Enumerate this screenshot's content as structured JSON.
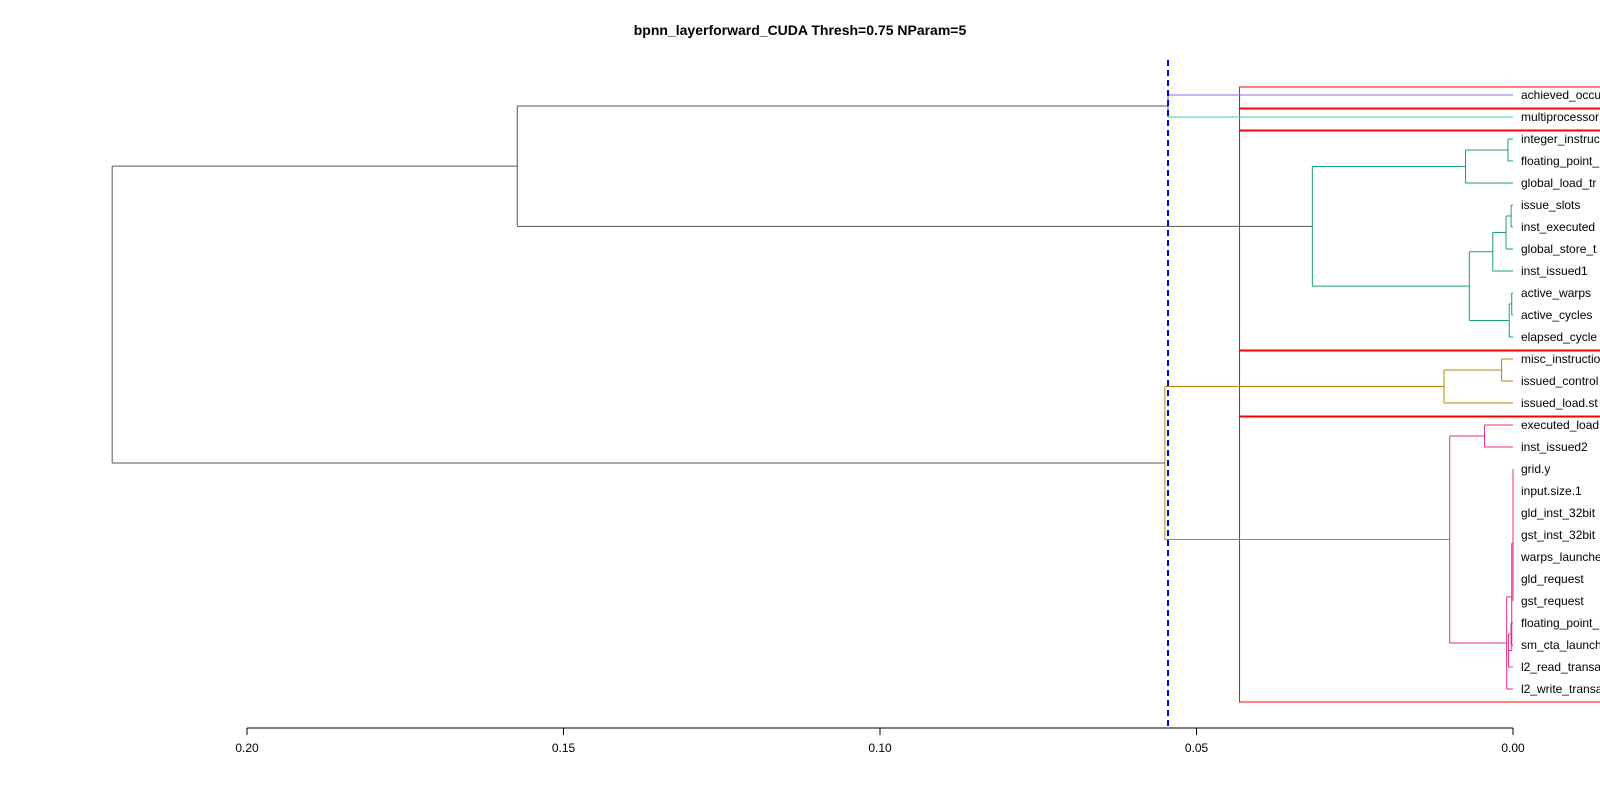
{
  "chart_data": {
    "type": "dendrogram",
    "title": "bpnn_layerforward_CUDA Thresh=0.75 NParam=5",
    "xlabel": "",
    "ylabel": "",
    "x_axis": {
      "direction": "reversed",
      "xlim": [
        0.2,
        0.0
      ],
      "ticks": [
        "0.20",
        "0.15",
        "0.10",
        "0.05",
        "0.00"
      ]
    },
    "threshold_line": {
      "value": 0.0545,
      "color": "#0000ff",
      "style": "dashed"
    },
    "leaves": [
      "achieved_occu",
      "multiprocessor",
      "integer_instruc",
      "floating_point_",
      "global_load_tr",
      "issue_slots",
      "inst_executed",
      "global_store_t",
      "inst_issued1",
      "active_warps",
      "active_cycles",
      "elapsed_cycle",
      "misc_instructio",
      "issued_control",
      "issued_load.st",
      "executed_load",
      "inst_issued2",
      "grid.y",
      "input.size.1",
      "gld_inst_32bit",
      "gst_inst_32bit",
      "warps_launche",
      "gld_request",
      "gst_request",
      "floating_point_",
      "sm_cta_launch",
      "l2_read_transa",
      "l2_write_transa"
    ],
    "merges": [
      {
        "a": "L17",
        "b": "L18",
        "height": 0.0,
        "color": "#e7298a"
      },
      {
        "a": "L19",
        "b": "L20",
        "height": 0.0,
        "color": "#e7298a"
      },
      {
        "a": "M0",
        "b": "M1",
        "height": 0.0,
        "color": "#e7298a"
      },
      {
        "a": "L21",
        "b": "L22",
        "height": 0.0,
        "color": "#e7298a"
      },
      {
        "a": "M3",
        "b": "L23",
        "height": 0.0,
        "color": "#e7298a"
      },
      {
        "a": "M2",
        "b": "M4",
        "height": 0.0,
        "color": "#e7298a"
      },
      {
        "a": "L24",
        "b": "L25",
        "height": 0.0003,
        "color": "#e7298a"
      },
      {
        "a": "M6",
        "b": "L26",
        "height": 0.0007,
        "color": "#e7298a"
      },
      {
        "a": "M5",
        "b": "M7",
        "height": 0.0002,
        "color": "#e7298a"
      },
      {
        "a": "M8",
        "b": "L27",
        "height": 0.001,
        "color": "#e7298a"
      },
      {
        "a": "L15",
        "b": "L16",
        "height": 0.0045,
        "color": "#e7298a"
      },
      {
        "a": "M10",
        "b": "M9",
        "height": 0.01,
        "color": "#e7298a"
      },
      {
        "a": "L12",
        "b": "L13",
        "height": 0.0018,
        "color": "#b8860b"
      },
      {
        "a": "M12",
        "b": "L14",
        "height": 0.0109,
        "color": "#b8860b"
      },
      {
        "a": "M13",
        "b": "M11",
        "height": 0.055,
        "color": "#b8860b"
      },
      {
        "a": "L2",
        "b": "L3",
        "height": 0.0008,
        "color": "#1b9e77"
      },
      {
        "a": "M15",
        "b": "L4",
        "height": 0.0075,
        "color": "#1b9e77"
      },
      {
        "a": "L5",
        "b": "L6",
        "height": 0.0003,
        "color": "#1b9e77"
      },
      {
        "a": "M17",
        "b": "L7",
        "height": 0.0011,
        "color": "#1b9e77"
      },
      {
        "a": "M18",
        "b": "L8",
        "height": 0.0032,
        "color": "#1b9e77"
      },
      {
        "a": "L9",
        "b": "L10",
        "height": 0.0002,
        "color": "#1b9e77"
      },
      {
        "a": "M20",
        "b": "L11",
        "height": 0.0006,
        "color": "#1b9e77"
      },
      {
        "a": "M19",
        "b": "M21",
        "height": 0.0069,
        "color": "#1b9e77"
      },
      {
        "a": "M16",
        "b": "M22",
        "height": 0.0317,
        "color": "#1b9e77"
      },
      {
        "a": "L0",
        "b": "L1",
        "height": 0.0545,
        "color": "#555555"
      },
      {
        "a": "M24",
        "b": "M23",
        "height": 0.1573,
        "color": "#555555"
      },
      {
        "a": "M25",
        "b": "M14",
        "height": 0.2213,
        "color": "#555555"
      }
    ],
    "leaf_branch_colors": {
      "0": "#9966ee",
      "1": "#44ccbb"
    },
    "cluster_boxes": [
      {
        "from": 0,
        "to": 0,
        "color": "#ff0000"
      },
      {
        "from": 1,
        "to": 1,
        "color": "#ff0000"
      },
      {
        "from": 2,
        "to": 11,
        "color": "#ff0000"
      },
      {
        "from": 12,
        "to": 14,
        "color": "#ff0000"
      },
      {
        "from": 15,
        "to": 27,
        "color": "#ff0000"
      }
    ]
  }
}
